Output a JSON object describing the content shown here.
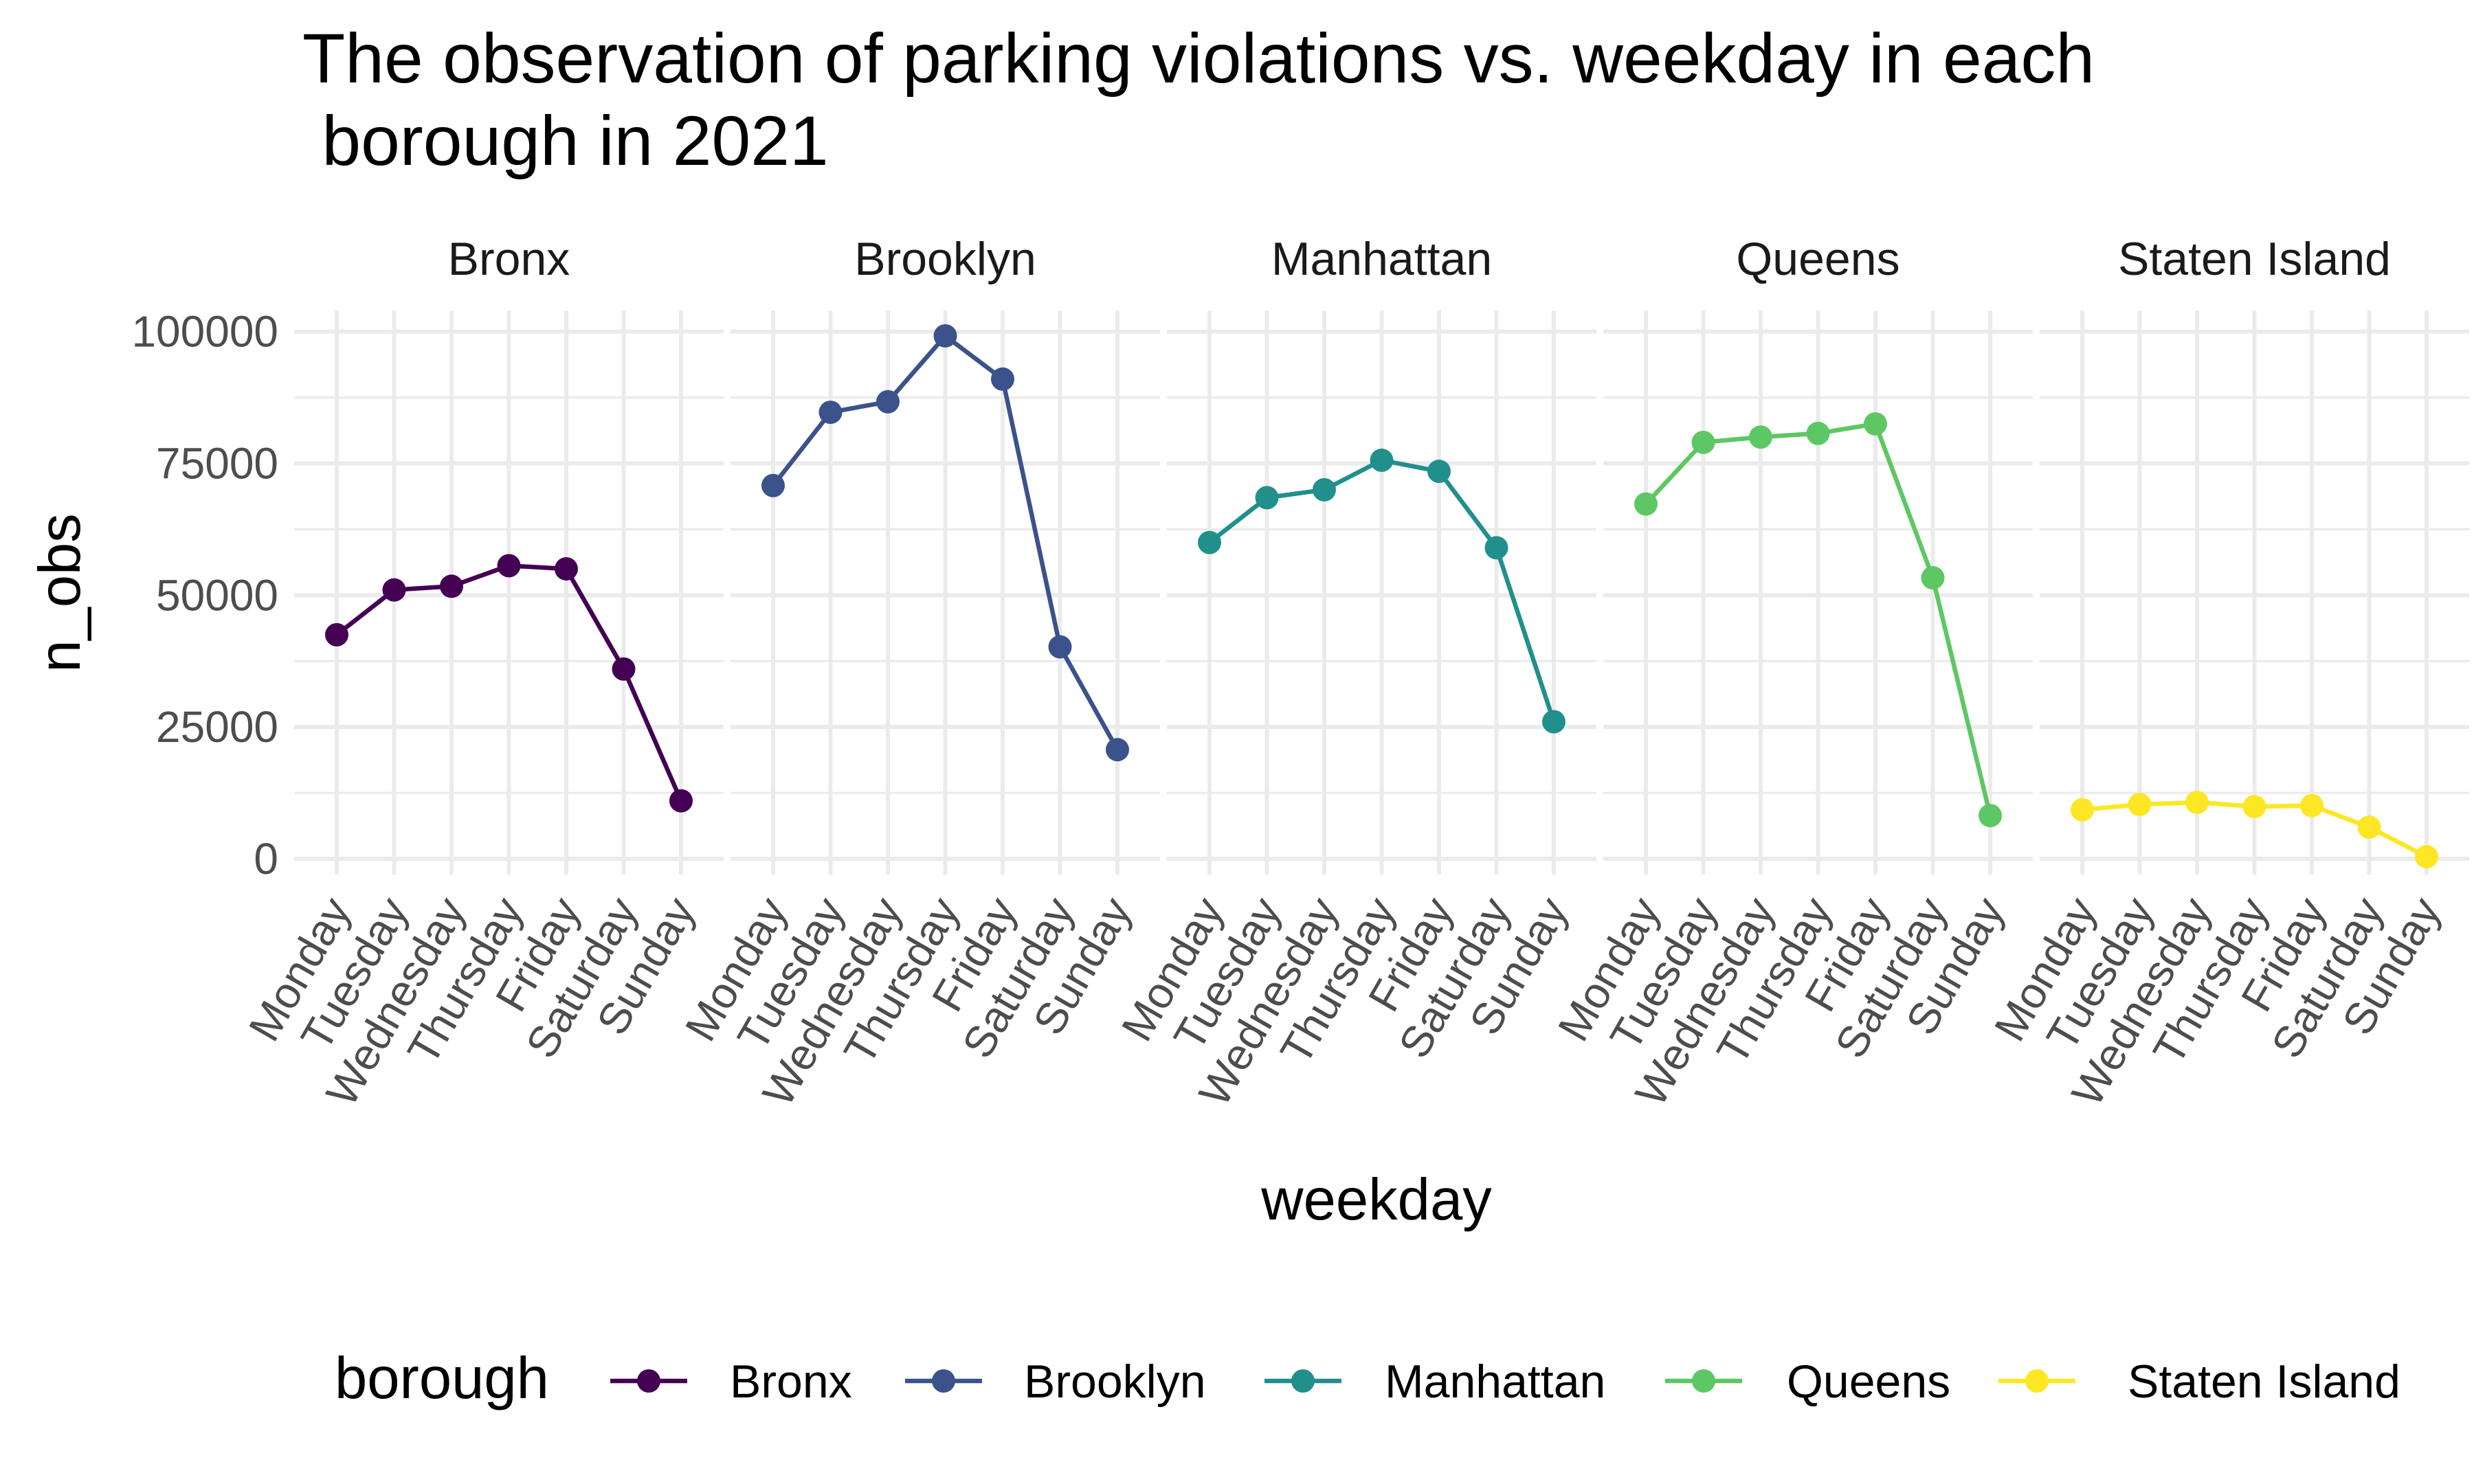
{
  "chart_data": {
    "type": "line",
    "title": "The observation of parking violations vs. weekday in each",
    "title_line2": " borough in 2021",
    "xlabel": "weekday",
    "ylabel": "n_obs",
    "categories": [
      "Monday",
      "Tuesday",
      "Wednesday",
      "Thursday",
      "Friday",
      "Saturday",
      "Sunday"
    ],
    "ylim": [
      -3000,
      104000
    ],
    "yticks": [
      0,
      25000,
      50000,
      75000,
      100000
    ],
    "ytick_labels": [
      "0",
      "25000",
      "50000",
      "75000",
      "100000"
    ],
    "facet_by": "borough",
    "grid": true,
    "legend": {
      "title": "borough",
      "position": "bottom"
    },
    "series": [
      {
        "name": "Bronx",
        "color": "#440154",
        "values": [
          42500,
          51000,
          51700,
          55600,
          55000,
          36000,
          11000
        ]
      },
      {
        "name": "Brooklyn",
        "color": "#3B528B",
        "values": [
          70800,
          84700,
          86700,
          99200,
          91000,
          40200,
          20700
        ]
      },
      {
        "name": "Manhattan",
        "color": "#21908C",
        "values": [
          60000,
          68500,
          70000,
          75600,
          73500,
          59000,
          26000
        ]
      },
      {
        "name": "Queens",
        "color": "#5DC863",
        "values": [
          67300,
          79000,
          80000,
          80700,
          82500,
          53300,
          8200
        ]
      },
      {
        "name": "Staten Island",
        "color": "#FDE725",
        "values": [
          9300,
          10300,
          10700,
          9900,
          10100,
          6000,
          400
        ]
      }
    ]
  }
}
